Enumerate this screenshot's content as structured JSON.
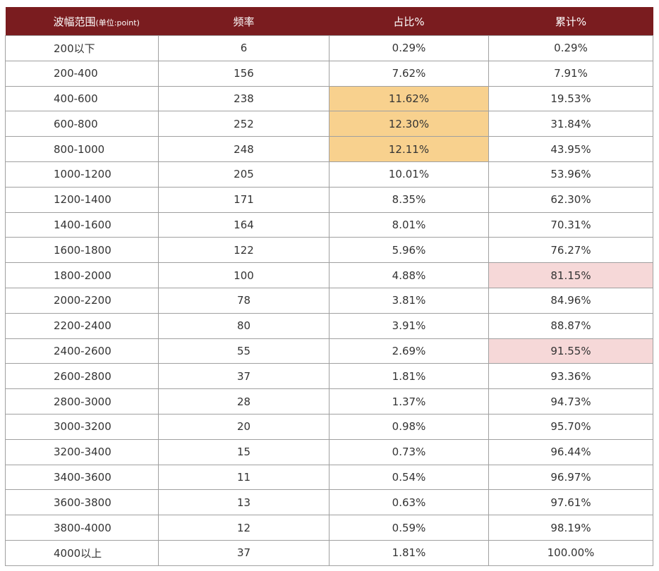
{
  "table": {
    "header": [
      {
        "text": "波幅范围",
        "unit": "(单位:point)"
      },
      {
        "text": "频率"
      },
      {
        "text": "占比%"
      },
      {
        "text": "累计%"
      }
    ],
    "rows": [
      [
        "200以下",
        6,
        "0.29%",
        "0.29%"
      ],
      [
        "200-400",
        156,
        "7.62%",
        "7.91%"
      ],
      [
        "400-600",
        238,
        "11.62%",
        "19.53%"
      ],
      [
        "600-800",
        252,
        "12.30%",
        "31.84%"
      ],
      [
        "800-1000",
        248,
        "12.11%",
        "43.95%"
      ],
      [
        "1000-1200",
        205,
        "10.01%",
        "53.96%"
      ],
      [
        "1200-1400",
        171,
        "8.35%",
        "62.30%"
      ],
      [
        "1400-1600",
        164,
        "8.01%",
        "70.31%"
      ],
      [
        "1600-1800",
        122,
        "5.96%",
        "76.27%"
      ],
      [
        "1800-2000",
        100,
        "4.88%",
        "81.15%"
      ],
      [
        "2000-2200",
        78,
        "3.81%",
        "84.96%"
      ],
      [
        "2200-2400",
        80,
        "3.91%",
        "88.87%"
      ],
      [
        "2400-2600",
        55,
        "2.69%",
        "91.55%"
      ],
      [
        "2600-2800",
        37,
        "1.81%",
        "93.36%"
      ],
      [
        "2800-3000",
        28,
        "1.37%",
        "94.73%"
      ],
      [
        "3000-3200",
        20,
        "0.98%",
        "95.70%"
      ],
      [
        "3200-3400",
        15,
        "0.73%",
        "96.44%"
      ],
      [
        "3400-3600",
        11,
        "0.54%",
        "96.97%"
      ],
      [
        "3600-3800",
        13,
        "0.63%",
        "97.61%"
      ],
      [
        "3800-4000",
        12,
        "0.59%",
        "98.19%"
      ],
      [
        "4000以上",
        37,
        "1.81%",
        "100.00%"
      ]
    ]
  }
}
